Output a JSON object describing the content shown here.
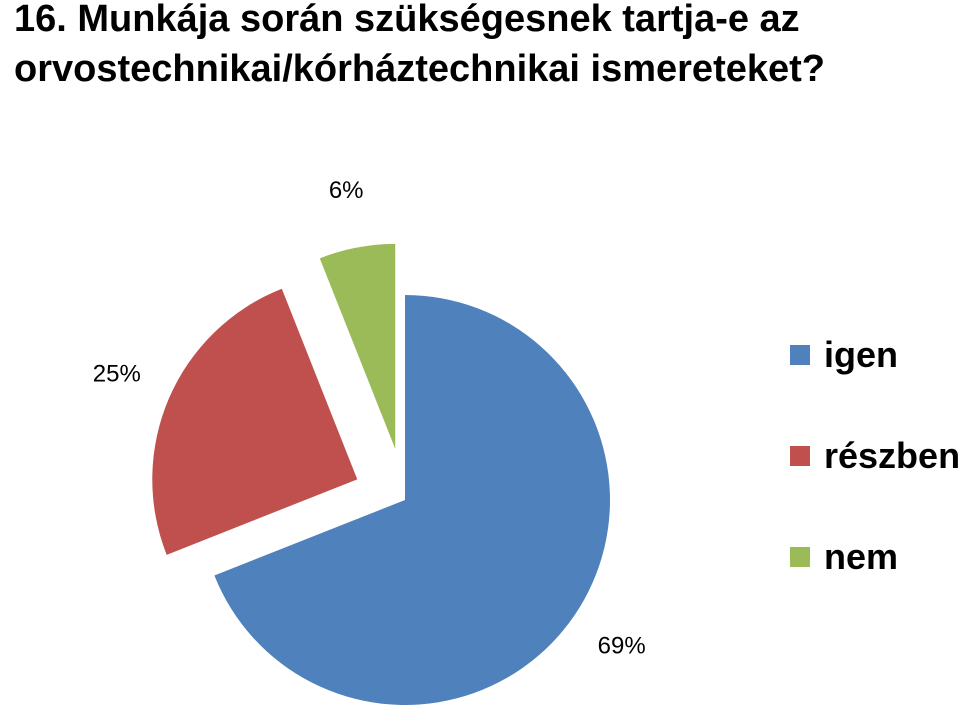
{
  "chart_data": {
    "type": "pie",
    "title_lines": [
      "16. Munkája során szükségesnek tartja-e az",
      "orvostechnikai/kórháztechnikai ismereteket?"
    ],
    "slices": [
      {
        "label": "igen",
        "value": 69,
        "display": "69%",
        "color": "#4f81bd",
        "exploded": false
      },
      {
        "label": "részben",
        "value": 25,
        "display": "25%",
        "color": "#c0504d",
        "exploded": true
      },
      {
        "label": "nem",
        "value": 6,
        "display": "6%",
        "color": "#9bbb59",
        "exploded": true
      }
    ],
    "legend_placement": "right",
    "start": "12 o'clock",
    "direction": "clockwise"
  }
}
